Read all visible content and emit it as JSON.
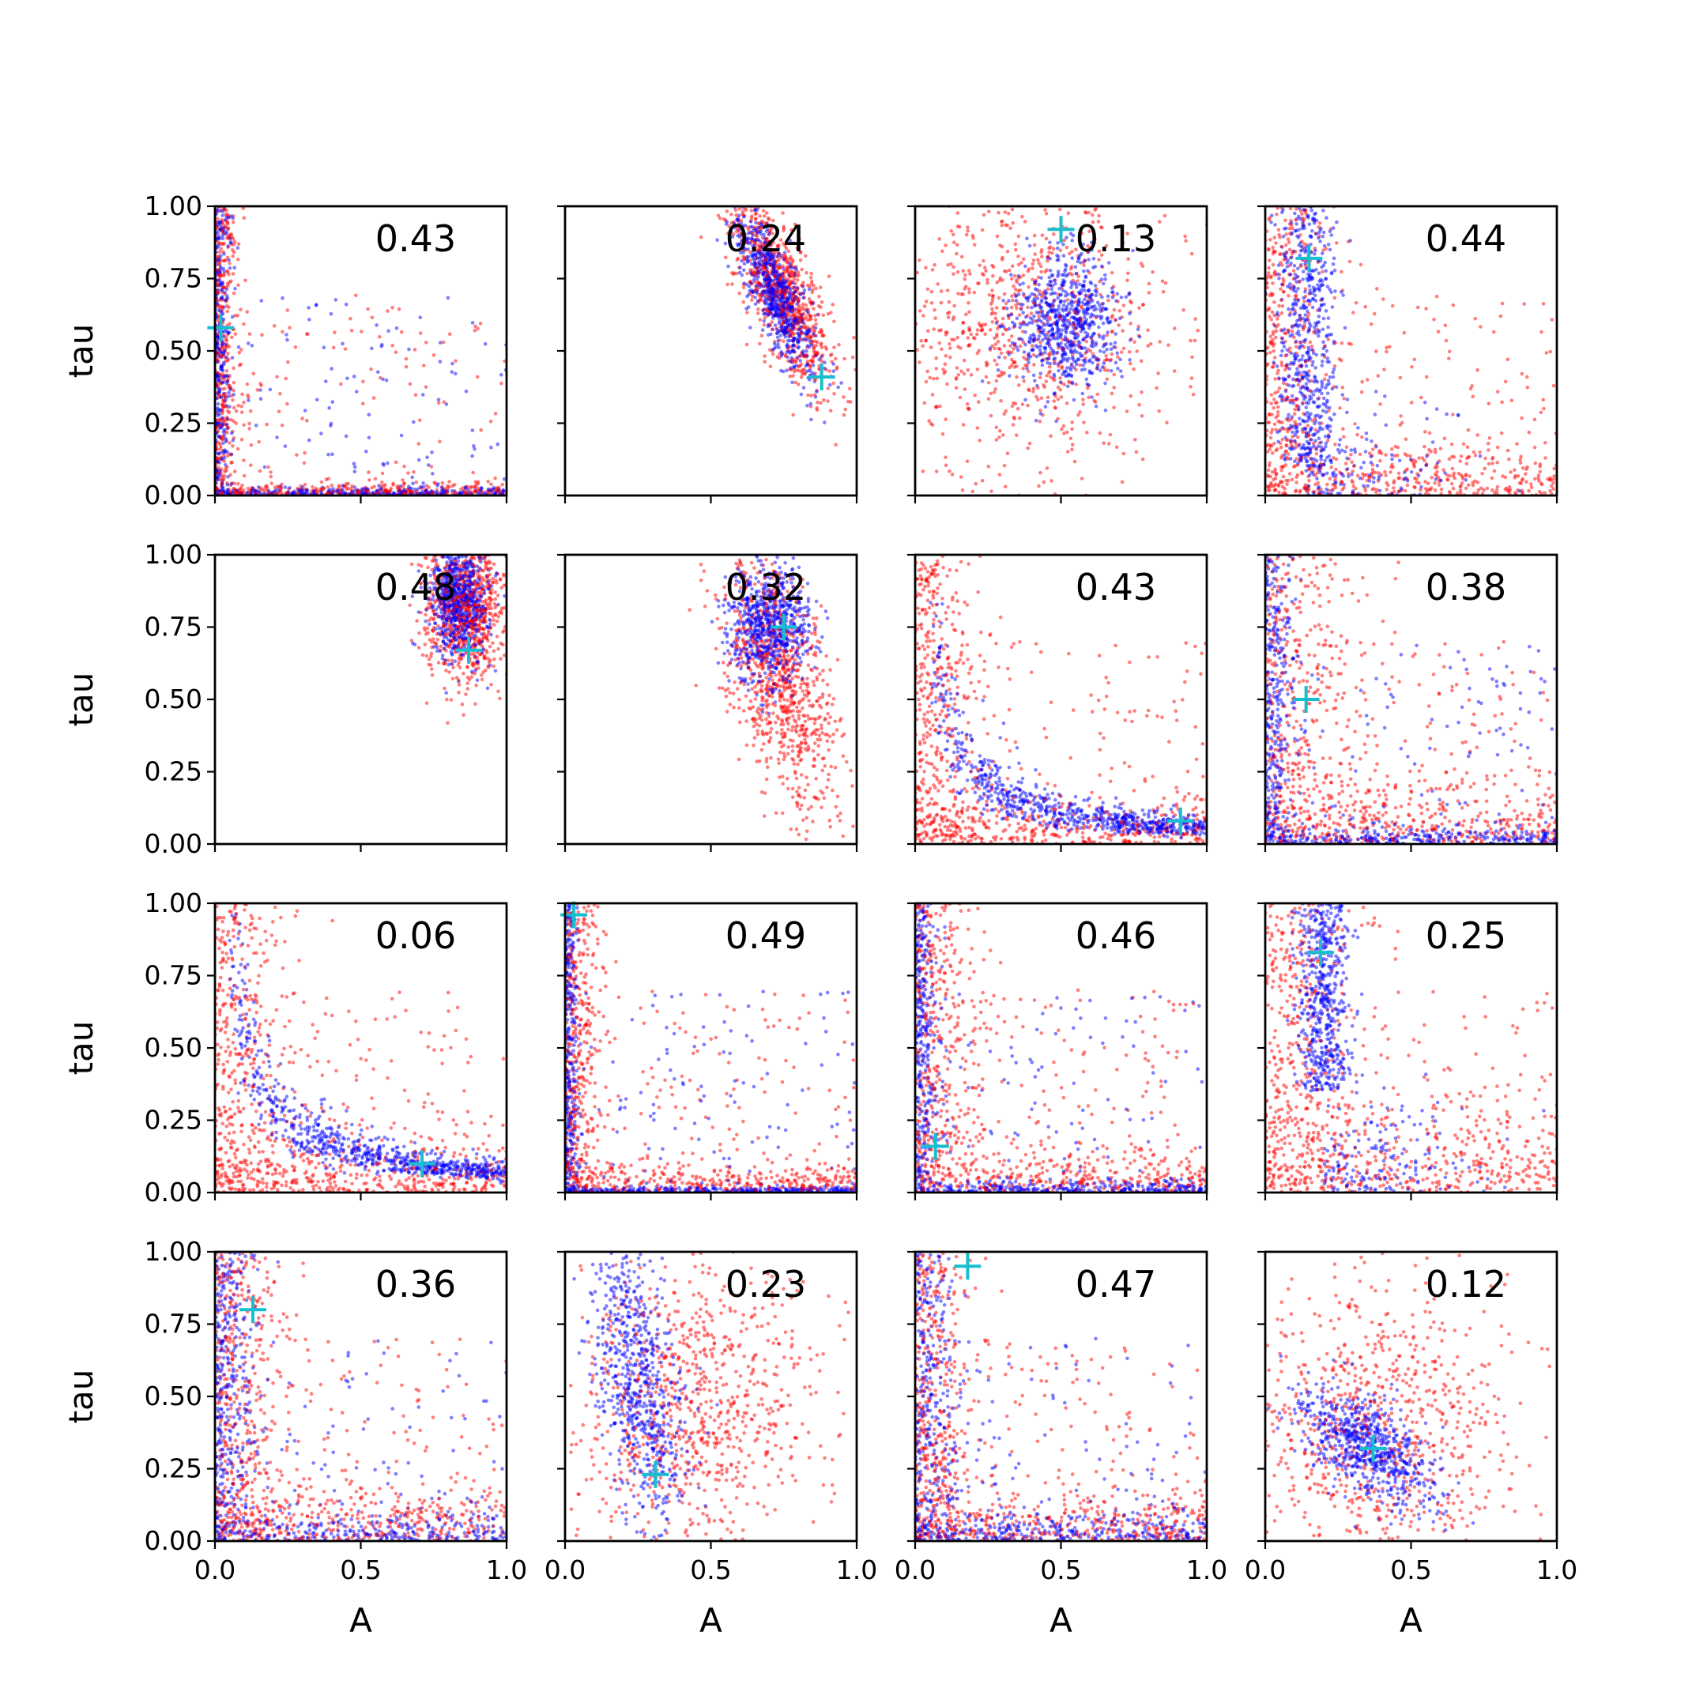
{
  "chart_data": {
    "type": "scatter",
    "layout": "4x4 grid of scatter panels with shared axes",
    "xlabel": "A",
    "ylabel": "tau",
    "xlim": [
      0.0,
      1.0
    ],
    "ylim": [
      0.0,
      1.0
    ],
    "x_ticks": [
      "0.0",
      "0.5",
      "1.0"
    ],
    "y_ticks": [
      "0.00",
      "0.25",
      "0.50",
      "0.75",
      "1.00"
    ],
    "grid": false,
    "legend": "none",
    "colors": {
      "series_red": "#ff0000",
      "series_blue": "#0000ff",
      "marker_cross": "#17becf"
    },
    "panels": [
      {
        "annotation": "0.43",
        "cross": {
          "A": 0.02,
          "tau": 0.58
        },
        "red": {
          "pattern": "L",
          "ax": 0.04,
          "at": 0.02
        },
        "blue": {
          "pattern": "L",
          "ax": 0.025,
          "at": 0.015
        }
      },
      {
        "annotation": "0.24",
        "cross": {
          "A": 0.88,
          "tau": 0.41
        },
        "red": {
          "pattern": "diag",
          "cx": 0.74,
          "cy": 0.71,
          "sx": 0.09,
          "sy": 0.17,
          "r": -0.75
        },
        "blue": {
          "pattern": "diag",
          "cx": 0.72,
          "cy": 0.7,
          "sx": 0.07,
          "sy": 0.14,
          "r": -0.8
        }
      },
      {
        "annotation": "0.13",
        "cross": {
          "A": 0.5,
          "tau": 0.92
        },
        "red": {
          "pattern": "scatterwide",
          "cx": 0.38,
          "cy": 0.6,
          "sx": 0.25,
          "sy": 0.27
        },
        "blue": {
          "pattern": "blob",
          "cx": 0.52,
          "cy": 0.6,
          "sx": 0.09,
          "sy": 0.11
        }
      },
      {
        "annotation": "0.44",
        "cross": {
          "A": 0.15,
          "tau": 0.82
        },
        "red": {
          "pattern": "L",
          "ax": 0.12,
          "at": 0.09
        },
        "blue": {
          "pattern": "vband",
          "cx": 0.14,
          "sx": 0.05,
          "ymin": 0.1,
          "ymax": 1.0
        }
      },
      {
        "annotation": "0.48",
        "cross": {
          "A": 0.87,
          "tau": 0.67
        },
        "red": {
          "pattern": "blob",
          "cx": 0.86,
          "cy": 0.82,
          "sx": 0.07,
          "sy": 0.13
        },
        "blue": {
          "pattern": "blob",
          "cx": 0.84,
          "cy": 0.85,
          "sx": 0.05,
          "sy": 0.1
        }
      },
      {
        "annotation": "0.32",
        "cross": {
          "A": 0.75,
          "tau": 0.75
        },
        "red": {
          "pattern": "diag",
          "cx": 0.74,
          "cy": 0.55,
          "sx": 0.1,
          "sy": 0.22,
          "r": -0.55
        },
        "blue": {
          "pattern": "blob",
          "cx": 0.7,
          "cy": 0.76,
          "sx": 0.07,
          "sy": 0.1
        }
      },
      {
        "annotation": "0.43",
        "cross": {
          "A": 0.91,
          "tau": 0.08
        },
        "red": {
          "pattern": "L",
          "ax": 0.1,
          "at": 0.08
        },
        "blue": {
          "pattern": "curve",
          "k": 0.055,
          "spread": 0.3
        }
      },
      {
        "annotation": "0.38",
        "cross": {
          "A": 0.14,
          "tau": 0.5
        },
        "red": {
          "pattern": "L",
          "ax": 0.16,
          "at": 0.12
        },
        "blue": {
          "pattern": "L",
          "ax": 0.05,
          "at": 0.03
        }
      },
      {
        "annotation": "0.06",
        "cross": {
          "A": 0.71,
          "tau": 0.1
        },
        "red": {
          "pattern": "L",
          "ax": 0.12,
          "at": 0.1
        },
        "blue": {
          "pattern": "curve",
          "k": 0.07,
          "spread": 0.25
        }
      },
      {
        "annotation": "0.49",
        "cross": {
          "A": 0.03,
          "tau": 0.96
        },
        "red": {
          "pattern": "L",
          "ax": 0.06,
          "at": 0.05
        },
        "blue": {
          "pattern": "L",
          "ax": 0.02,
          "at": 0.01
        }
      },
      {
        "annotation": "0.46",
        "cross": {
          "A": 0.07,
          "tau": 0.16
        },
        "red": {
          "pattern": "L",
          "ax": 0.1,
          "at": 0.08
        },
        "blue": {
          "pattern": "L",
          "ax": 0.04,
          "at": 0.02
        }
      },
      {
        "annotation": "0.25",
        "cross": {
          "A": 0.19,
          "tau": 0.83
        },
        "red": {
          "pattern": "L",
          "ax": 0.16,
          "at": 0.14
        },
        "blue": {
          "pattern": "vband",
          "cx": 0.2,
          "sx": 0.045,
          "ymin": 0.35,
          "ymax": 1.0
        }
      },
      {
        "annotation": "0.36",
        "cross": {
          "A": 0.13,
          "tau": 0.8
        },
        "red": {
          "pattern": "L",
          "ax": 0.12,
          "at": 0.1
        },
        "blue": {
          "pattern": "L",
          "ax": 0.07,
          "at": 0.05
        }
      },
      {
        "annotation": "0.23",
        "cross": {
          "A": 0.31,
          "tau": 0.23
        },
        "red": {
          "pattern": "scatterwide",
          "cx": 0.45,
          "cy": 0.45,
          "sx": 0.22,
          "sy": 0.27
        },
        "blue": {
          "pattern": "diag",
          "cx": 0.25,
          "cy": 0.55,
          "sx": 0.08,
          "sy": 0.25,
          "r": -0.5
        }
      },
      {
        "annotation": "0.47",
        "cross": {
          "A": 0.18,
          "tau": 0.95
        },
        "red": {
          "pattern": "L",
          "ax": 0.09,
          "at": 0.08
        },
        "blue": {
          "pattern": "L",
          "ax": 0.07,
          "at": 0.05
        }
      },
      {
        "annotation": "0.12",
        "cross": {
          "A": 0.37,
          "tau": 0.32
        },
        "red": {
          "pattern": "scatterwide",
          "cx": 0.38,
          "cy": 0.38,
          "sx": 0.25,
          "sy": 0.27
        },
        "blue": {
          "pattern": "diag",
          "cx": 0.35,
          "cy": 0.32,
          "sx": 0.12,
          "sy": 0.11,
          "r": -0.6
        }
      }
    ]
  }
}
